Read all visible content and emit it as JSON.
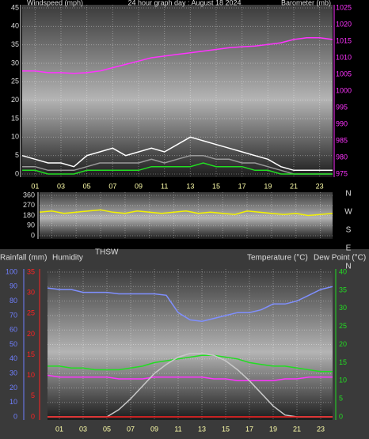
{
  "chart_data": [
    {
      "type": "line",
      "title": "24 hour graph day : August 18 2024",
      "y_label": "Windspeed (mph)",
      "y2_label": "Barometer (mb)",
      "x": [
        0,
        1,
        2,
        3,
        4,
        5,
        6,
        7,
        8,
        9,
        10,
        11,
        12,
        13,
        14,
        15,
        16,
        17,
        18,
        19,
        20,
        21,
        22,
        23,
        24
      ],
      "xlim": [
        0,
        24
      ],
      "xticks": [
        {
          "value": 1,
          "label": "01"
        },
        {
          "value": 3,
          "label": "03"
        },
        {
          "value": 5,
          "label": "05"
        },
        {
          "value": 7,
          "label": "07"
        },
        {
          "value": 9,
          "label": "09"
        },
        {
          "value": 11,
          "label": "11"
        },
        {
          "value": 13,
          "label": "13"
        },
        {
          "value": 15,
          "label": "15"
        },
        {
          "value": 17,
          "label": "17"
        },
        {
          "value": 19,
          "label": "19"
        },
        {
          "value": 21,
          "label": "21"
        },
        {
          "value": 23,
          "label": "23"
        }
      ],
      "ylim": [
        0,
        45
      ],
      "yticks": [
        0,
        5,
        10,
        15,
        20,
        25,
        30,
        35,
        40,
        45
      ],
      "ycolor": "#dddddd",
      "y2lim": [
        975,
        1025
      ],
      "y2ticks": [
        975,
        980,
        985,
        990,
        995,
        1000,
        1005,
        1010,
        1015,
        1020,
        1025
      ],
      "y2color": "#ff33ff",
      "grid": true,
      "series": [
        {
          "color": "#ffffff",
          "values": [
            5,
            4,
            3,
            3,
            2,
            5,
            6,
            7,
            5,
            6,
            7,
            6,
            8,
            10,
            9,
            8,
            7,
            6,
            5,
            4,
            2,
            1,
            1,
            1,
            1
          ]
        },
        {
          "color": "#9a9a9a",
          "values": [
            2,
            2,
            1,
            1,
            1,
            2,
            3,
            3,
            3,
            3,
            4,
            3,
            4,
            5,
            5,
            4,
            4,
            3,
            3,
            2,
            1,
            0,
            0,
            0,
            0
          ]
        },
        {
          "color": "#22dd22",
          "values": [
            1,
            1,
            0,
            0,
            0,
            1,
            1,
            1,
            1,
            1,
            2,
            2,
            2,
            2,
            3,
            2,
            2,
            2,
            1,
            1,
            0,
            0,
            0,
            0,
            0
          ]
        },
        {
          "color": "#ff33ff",
          "axis": "y2",
          "values": [
            1006,
            1006,
            1005.5,
            1005.5,
            1005.3,
            1005.5,
            1006,
            1007,
            1008,
            1009,
            1010,
            1010.5,
            1011,
            1011.5,
            1012,
            1012.5,
            1013,
            1013.3,
            1013.5,
            1014,
            1014.5,
            1015.5,
            1016,
            1016,
            1015.5
          ]
        }
      ]
    },
    {
      "type": "line",
      "x": [
        0,
        1,
        2,
        3,
        4,
        5,
        6,
        7,
        8,
        9,
        10,
        11,
        12,
        13,
        14,
        15,
        16,
        17,
        18,
        19,
        20,
        21,
        22,
        23,
        24
      ],
      "xlim": [
        0,
        24
      ],
      "xticks": [
        {
          "value": 1,
          "label": "01"
        },
        {
          "value": 3,
          "label": "03"
        },
        {
          "value": 5,
          "label": "05"
        },
        {
          "value": 7,
          "label": "07"
        },
        {
          "value": 9,
          "label": "09"
        },
        {
          "value": 11,
          "label": "11"
        },
        {
          "value": 13,
          "label": "13"
        },
        {
          "value": 15,
          "label": "15"
        },
        {
          "value": 17,
          "label": "17"
        },
        {
          "value": 19,
          "label": "19"
        },
        {
          "value": 21,
          "label": "21"
        },
        {
          "value": 23,
          "label": "23"
        }
      ],
      "ylim": [
        0,
        360
      ],
      "yticks": [
        0,
        90,
        180,
        270,
        360
      ],
      "ycolor": "#dddddd",
      "compass_labels": [
        "N",
        "W",
        "S",
        "E",
        "N"
      ],
      "grid": true,
      "series": [
        {
          "color": "#f2f200",
          "values": [
            210,
            220,
            200,
            210,
            220,
            230,
            210,
            200,
            220,
            210,
            200,
            210,
            220,
            200,
            210,
            200,
            190,
            220,
            210,
            200,
            190,
            200,
            180,
            190,
            200
          ]
        }
      ]
    },
    {
      "type": "line",
      "labels": [
        "Rainfall (mm)",
        "Humidity",
        "THSW",
        "Temperature (°C)",
        "Dew Point (°C)"
      ],
      "x": [
        0,
        1,
        2,
        3,
        4,
        5,
        6,
        7,
        8,
        9,
        10,
        11,
        12,
        13,
        14,
        15,
        16,
        17,
        18,
        19,
        20,
        21,
        22,
        23,
        24
      ],
      "xlim": [
        0,
        24
      ],
      "xticks": [
        {
          "value": 1,
          "label": "01"
        },
        {
          "value": 3,
          "label": "03"
        },
        {
          "value": 5,
          "label": "05"
        },
        {
          "value": 7,
          "label": "07"
        },
        {
          "value": 9,
          "label": "09"
        },
        {
          "value": 11,
          "label": "11"
        },
        {
          "value": 13,
          "label": "13"
        },
        {
          "value": 15,
          "label": "15"
        },
        {
          "value": 17,
          "label": "17"
        },
        {
          "value": 19,
          "label": "19"
        },
        {
          "value": 21,
          "label": "21"
        },
        {
          "value": 23,
          "label": "23"
        }
      ],
      "ylim": [
        0,
        100
      ],
      "yticks": [
        0,
        10,
        20,
        30,
        40,
        50,
        60,
        70,
        80,
        90,
        100
      ],
      "ycolor": "#6f7fff",
      "y3lim": [
        0,
        35
      ],
      "y3ticks": [
        0,
        5,
        10,
        15,
        20,
        25,
        30,
        35
      ],
      "y3color": "#ff2222",
      "y2lim": [
        0,
        40
      ],
      "y2ticks": [
        0,
        5,
        10,
        15,
        20,
        25,
        30,
        35,
        40
      ],
      "y2color": "#22dd22",
      "grid": true,
      "series": [
        {
          "color": "#7f8fff",
          "values": [
            89,
            88,
            88,
            86,
            86,
            86,
            85,
            85,
            85,
            85,
            84,
            72,
            67,
            66,
            68,
            70,
            72,
            72,
            74,
            78,
            78,
            80,
            84,
            88,
            90
          ]
        },
        {
          "color": "#22dd22",
          "axis": "y2",
          "values": [
            14,
            14,
            13.5,
            13.5,
            13,
            13,
            13,
            13.5,
            14,
            15,
            15.5,
            16,
            16.5,
            17,
            17,
            16.5,
            16,
            15,
            14.5,
            14,
            14,
            13.5,
            13,
            12.5,
            12.5
          ]
        },
        {
          "color": "#ff33ff",
          "axis": "y2",
          "values": [
            11.5,
            11,
            11,
            11,
            11,
            11,
            10.5,
            10.5,
            10.5,
            11,
            11,
            11,
            11,
            11,
            10.5,
            10.5,
            10,
            10,
            10,
            10,
            10.5,
            10.5,
            11,
            11,
            11
          ]
        },
        {
          "color": "#c8c8c8",
          "axis": "y2",
          "values": [
            0,
            0,
            0,
            0,
            0,
            0,
            2,
            5,
            8.5,
            12,
            14.5,
            16.5,
            17.5,
            17.5,
            17,
            15.5,
            13,
            10,
            6.5,
            3,
            0.5,
            0,
            0,
            0,
            0
          ]
        },
        {
          "color": "#ff2222",
          "axis": "y3",
          "values": [
            0,
            0,
            0,
            0,
            0,
            0,
            0,
            0,
            0,
            0,
            0,
            0,
            0,
            0,
            0,
            0,
            0,
            0,
            0,
            0,
            0,
            0,
            0,
            0,
            0
          ]
        }
      ]
    }
  ]
}
